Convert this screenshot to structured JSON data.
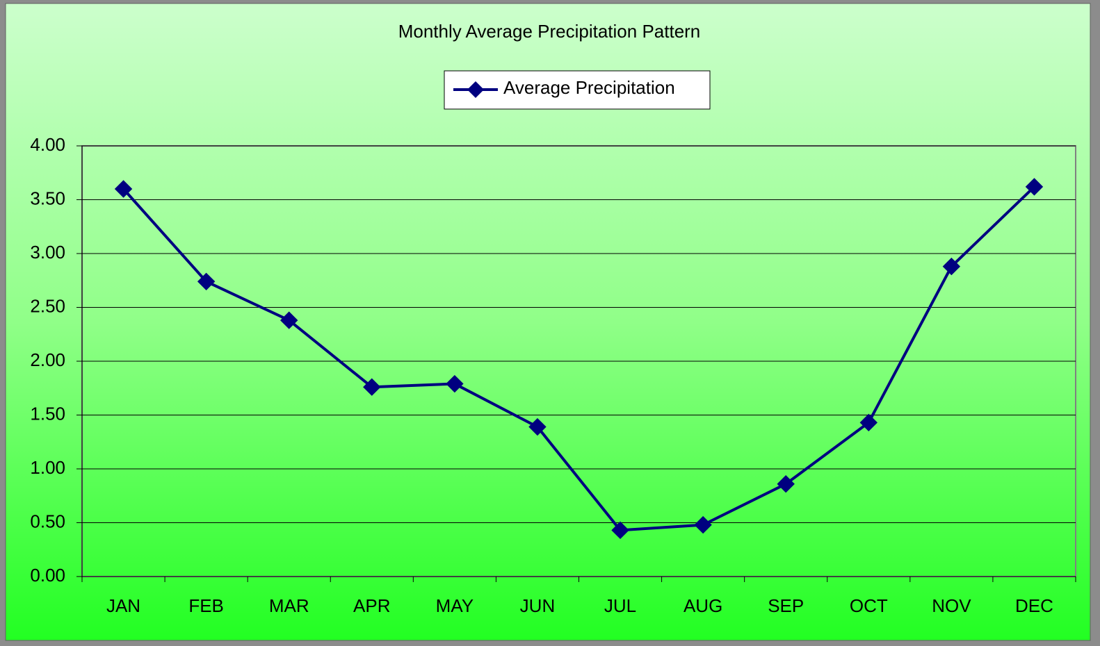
{
  "chart_data": {
    "type": "line",
    "title": "Monthly Average Precipitation Pattern",
    "categories": [
      "JAN",
      "FEB",
      "MAR",
      "APR",
      "MAY",
      "JUN",
      "JUL",
      "AUG",
      "SEP",
      "OCT",
      "NOV",
      "DEC"
    ],
    "series": [
      {
        "name": "Average Precipitation",
        "color": "#000080",
        "values": [
          3.6,
          2.74,
          2.38,
          1.76,
          1.79,
          1.39,
          0.43,
          0.48,
          0.86,
          1.43,
          2.88,
          3.62
        ]
      }
    ],
    "ylim": [
      0,
      4
    ],
    "yticks": [
      {
        "value": 0,
        "label": "0.00"
      },
      {
        "value": 0.5,
        "label": "0.50"
      },
      {
        "value": 1,
        "label": "1.00"
      },
      {
        "value": 1.5,
        "label": "1.50"
      },
      {
        "value": 2,
        "label": "2.00"
      },
      {
        "value": 2.5,
        "label": "2.50"
      },
      {
        "value": 3,
        "label": "3.00"
      },
      {
        "value": 3.5,
        "label": "3.50"
      },
      {
        "value": 4,
        "label": "4.00"
      }
    ],
    "grid": true,
    "legend": "top"
  }
}
